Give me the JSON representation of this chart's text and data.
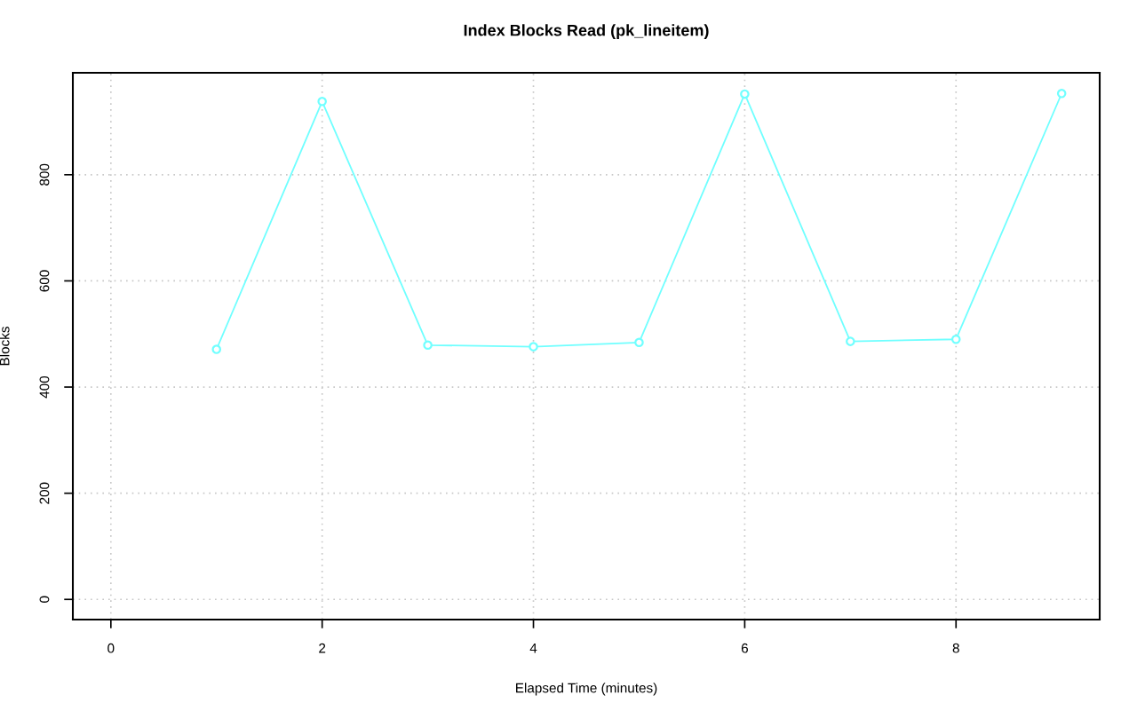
{
  "chart_data": {
    "type": "line",
    "title": "Index Blocks Read (pk_lineitem)",
    "xlabel": "Elapsed Time (minutes)",
    "ylabel": "Blocks",
    "x": [
      1,
      2,
      3,
      4,
      5,
      6,
      7,
      8,
      9
    ],
    "series": [
      {
        "color": "#70ffff",
        "values": [
          471,
          938,
          479,
          476,
          484,
          952,
          486,
          490,
          953
        ]
      }
    ],
    "xlim": [
      -0.36,
      9.36
    ],
    "xticks": [
      0,
      2,
      4,
      6,
      8
    ],
    "ylim": [
      -38,
      992
    ],
    "yticks": [
      0,
      200,
      400,
      600,
      800
    ],
    "grid": true,
    "marker": "circle",
    "line_style": "solid"
  }
}
